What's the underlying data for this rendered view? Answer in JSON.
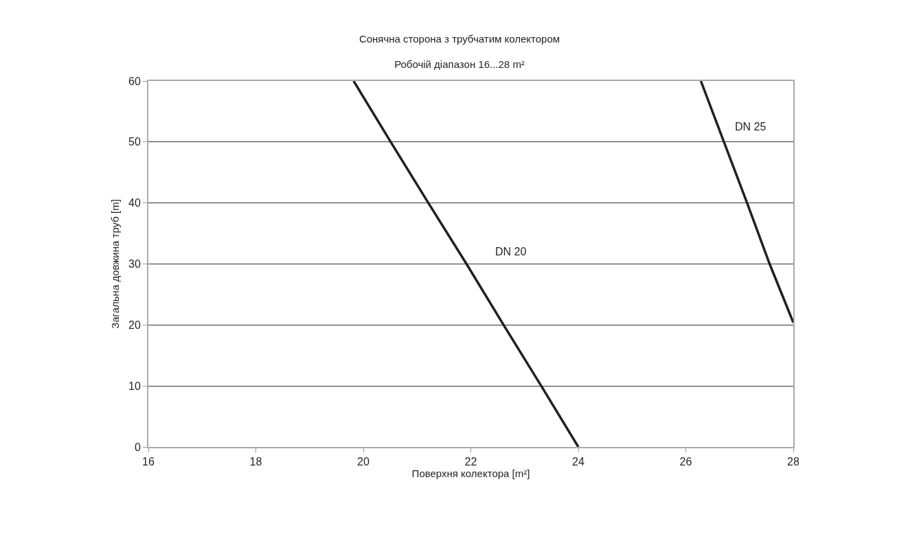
{
  "chart_data": {
    "type": "line",
    "title": "Сонячна сторона з трубчатим колектором",
    "subtitle": "Робочій діапазон 16...28 m²",
    "xlabel": "Поверхня колектора [m²]",
    "ylabel": "Загальна довжина труб [m]",
    "series": [
      {
        "name": "DN 20",
        "color": "#231f20",
        "x": [
          19.82,
          20.51,
          21.21,
          21.92,
          22.61,
          23.31,
          24
        ],
        "values": [
          60,
          50,
          40,
          30,
          20,
          10,
          0
        ]
      },
      {
        "name": "DN 25",
        "color": "#231f20",
        "x": [
          26.28,
          26.71,
          27.14,
          27.56,
          28
        ],
        "values": [
          60,
          50,
          40,
          30,
          20.4
        ]
      }
    ],
    "xlim": [
      16,
      28
    ],
    "xticks": [
      16,
      18,
      20,
      22,
      24,
      26,
      28
    ],
    "ylim": [
      0,
      60
    ],
    "yticks": [
      0,
      10,
      20,
      30,
      40,
      50,
      60
    ],
    "grid": "y",
    "legend": false,
    "marker": "none",
    "line_style": "solid"
  }
}
